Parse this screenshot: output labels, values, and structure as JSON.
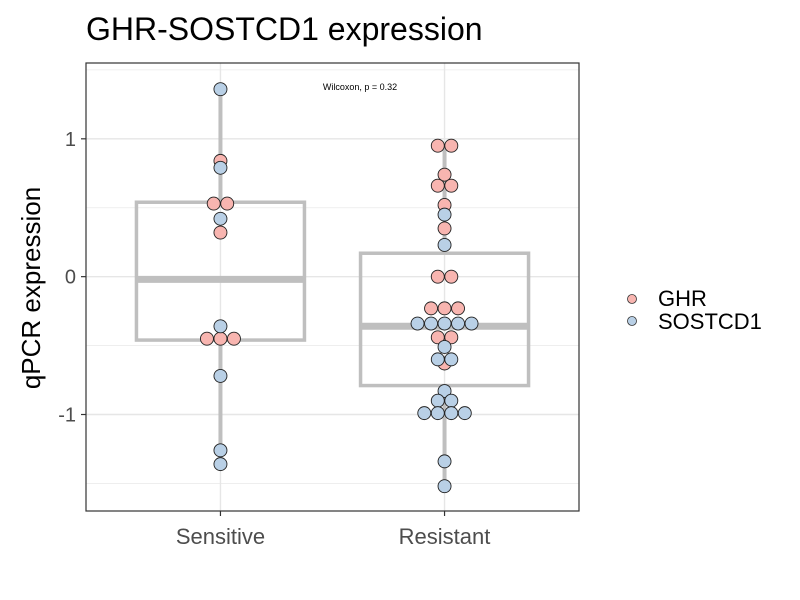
{
  "chart_data": {
    "type": "box+dotplot",
    "title": "GHR-SOSTCD1 expression",
    "xlabel": "",
    "ylabel": "qPCR expression",
    "categories": [
      "Sensitive",
      "Resistant"
    ],
    "ylim": [
      -1.7,
      1.55
    ],
    "yticks": [
      1,
      0,
      -1
    ],
    "ytick_labels": [
      "1",
      "0",
      "-1"
    ],
    "annotation": "Wilcoxon, p = 0.32",
    "grid": true,
    "legend_position": "right",
    "box_color": "#bfbfbf",
    "boxes": [
      {
        "category": "Sensitive",
        "whisker_low": -1.36,
        "q1": -0.46,
        "median": -0.02,
        "q3": 0.54,
        "whisker_high": 1.36
      },
      {
        "category": "Resistant",
        "whisker_low": -1.52,
        "q1": -0.79,
        "median": -0.36,
        "q3": 0.17,
        "whisker_high": 0.95
      }
    ],
    "series": [
      {
        "name": "GHR",
        "color": "#f8b5b0",
        "points": [
          {
            "category": "Sensitive",
            "y": 0.84,
            "offset": 0
          },
          {
            "category": "Sensitive",
            "y": 0.53,
            "offset": -0.5
          },
          {
            "category": "Sensitive",
            "y": 0.53,
            "offset": 0.5
          },
          {
            "category": "Sensitive",
            "y": 0.32,
            "offset": 0
          },
          {
            "category": "Sensitive",
            "y": -0.45,
            "offset": -1
          },
          {
            "category": "Sensitive",
            "y": -0.45,
            "offset": 0
          },
          {
            "category": "Sensitive",
            "y": -0.45,
            "offset": 1
          },
          {
            "category": "Resistant",
            "y": 0.95,
            "offset": -0.5
          },
          {
            "category": "Resistant",
            "y": 0.95,
            "offset": 0.5
          },
          {
            "category": "Resistant",
            "y": 0.74,
            "offset": 0
          },
          {
            "category": "Resistant",
            "y": 0.66,
            "offset": -0.5
          },
          {
            "category": "Resistant",
            "y": 0.66,
            "offset": 0.5
          },
          {
            "category": "Resistant",
            "y": 0.52,
            "offset": 0
          },
          {
            "category": "Resistant",
            "y": 0.35,
            "offset": 0
          },
          {
            "category": "Resistant",
            "y": 0.0,
            "offset": -0.5
          },
          {
            "category": "Resistant",
            "y": 0.0,
            "offset": 0.5
          },
          {
            "category": "Resistant",
            "y": -0.23,
            "offset": -1
          },
          {
            "category": "Resistant",
            "y": -0.23,
            "offset": 0
          },
          {
            "category": "Resistant",
            "y": -0.23,
            "offset": 1
          },
          {
            "category": "Resistant",
            "y": -0.44,
            "offset": -0.5
          },
          {
            "category": "Resistant",
            "y": -0.44,
            "offset": 0.5
          },
          {
            "category": "Resistant",
            "y": -0.63,
            "offset": 0
          }
        ]
      },
      {
        "name": "SOSTCD1",
        "color": "#b9d0e6",
        "points": [
          {
            "category": "Sensitive",
            "y": 1.36,
            "offset": 0
          },
          {
            "category": "Sensitive",
            "y": 0.79,
            "offset": 0
          },
          {
            "category": "Sensitive",
            "y": 0.42,
            "offset": 0
          },
          {
            "category": "Sensitive",
            "y": -0.36,
            "offset": 0
          },
          {
            "category": "Sensitive",
            "y": -0.72,
            "offset": 0
          },
          {
            "category": "Sensitive",
            "y": -1.26,
            "offset": 0
          },
          {
            "category": "Sensitive",
            "y": -1.36,
            "offset": 0
          },
          {
            "category": "Resistant",
            "y": 0.45,
            "offset": 0
          },
          {
            "category": "Resistant",
            "y": 0.23,
            "offset": 0
          },
          {
            "category": "Resistant",
            "y": -0.34,
            "offset": -2
          },
          {
            "category": "Resistant",
            "y": -0.34,
            "offset": -1
          },
          {
            "category": "Resistant",
            "y": -0.34,
            "offset": 0
          },
          {
            "category": "Resistant",
            "y": -0.34,
            "offset": 1
          },
          {
            "category": "Resistant",
            "y": -0.34,
            "offset": 2
          },
          {
            "category": "Resistant",
            "y": -0.51,
            "offset": 0
          },
          {
            "category": "Resistant",
            "y": -0.6,
            "offset": -0.5
          },
          {
            "category": "Resistant",
            "y": -0.6,
            "offset": 0.5
          },
          {
            "category": "Resistant",
            "y": -0.83,
            "offset": 0
          },
          {
            "category": "Resistant",
            "y": -0.9,
            "offset": -0.5
          },
          {
            "category": "Resistant",
            "y": -0.9,
            "offset": 0.5
          },
          {
            "category": "Resistant",
            "y": -0.99,
            "offset": -1.5
          },
          {
            "category": "Resistant",
            "y": -0.99,
            "offset": -0.5
          },
          {
            "category": "Resistant",
            "y": -0.99,
            "offset": 0.5
          },
          {
            "category": "Resistant",
            "y": -0.99,
            "offset": 1.5
          },
          {
            "category": "Resistant",
            "y": -1.34,
            "offset": 0
          },
          {
            "category": "Resistant",
            "y": -1.52,
            "offset": 0
          }
        ]
      }
    ]
  }
}
